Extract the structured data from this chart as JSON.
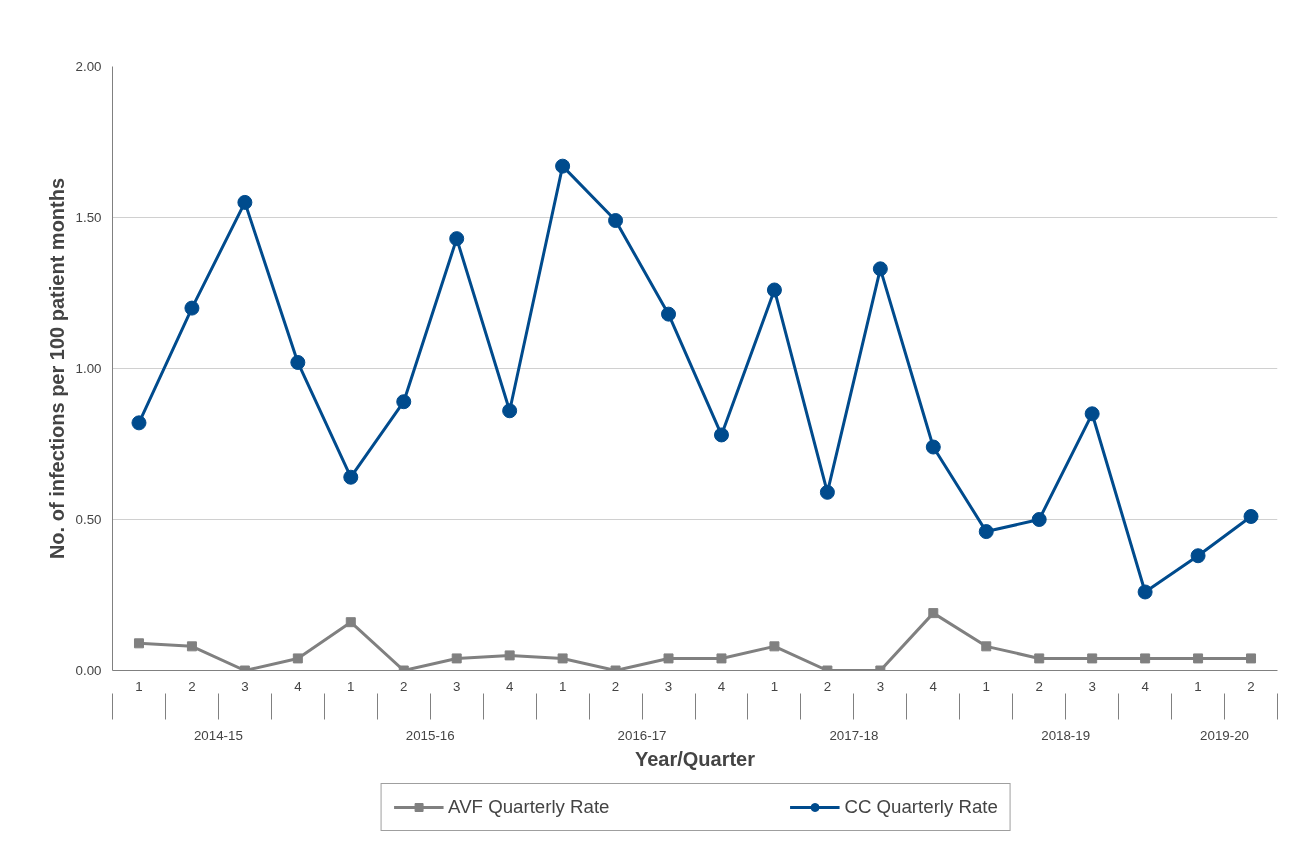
{
  "chart_data": {
    "type": "line",
    "xlabel": "Year/Quarter",
    "ylabel": "No. of infections per 100 patient months",
    "categories": [
      "1",
      "2",
      "3",
      "4",
      "1",
      "2",
      "3",
      "4",
      "1",
      "2",
      "3",
      "4",
      "1",
      "2",
      "3",
      "4",
      "1",
      "2",
      "3",
      "4",
      "1",
      "2"
    ],
    "annotations": [
      "2014-15",
      "2015-16",
      "2016-17",
      "2017-18",
      "2018-19",
      "2019-20"
    ],
    "series": [
      {
        "name": "AVF Quarterly Rate",
        "color": "#808080",
        "marker": "square",
        "values": [
          0.09,
          0.08,
          0.0,
          0.04,
          0.16,
          0.0,
          0.04,
          0.05,
          0.04,
          0.0,
          0.04,
          0.04,
          0.08,
          0.0,
          0.0,
          0.19,
          0.08,
          0.04,
          0.04,
          0.04,
          0.04,
          0.04
        ]
      },
      {
        "name": "CC Quarterly Rate",
        "color": "#004b8d",
        "marker": "circle",
        "values": [
          0.82,
          1.2,
          1.55,
          1.02,
          0.64,
          0.89,
          1.43,
          0.86,
          1.67,
          1.49,
          1.18,
          0.78,
          1.26,
          0.59,
          1.33,
          0.74,
          0.46,
          0.5,
          0.85,
          0.26,
          0.38,
          0.51
        ]
      }
    ],
    "ylim": [
      0,
      2
    ],
    "yticks": [
      {
        "value": 0,
        "label": "0.00"
      },
      {
        "value": 0.5,
        "label": "0.50"
      },
      {
        "value": 1,
        "label": "1.00"
      },
      {
        "value": 1.5,
        "label": "1.50"
      },
      {
        "value": 2,
        "label": "2.00"
      }
    ],
    "grid": "y",
    "legend": "bottom",
    "line_style": "solid"
  }
}
